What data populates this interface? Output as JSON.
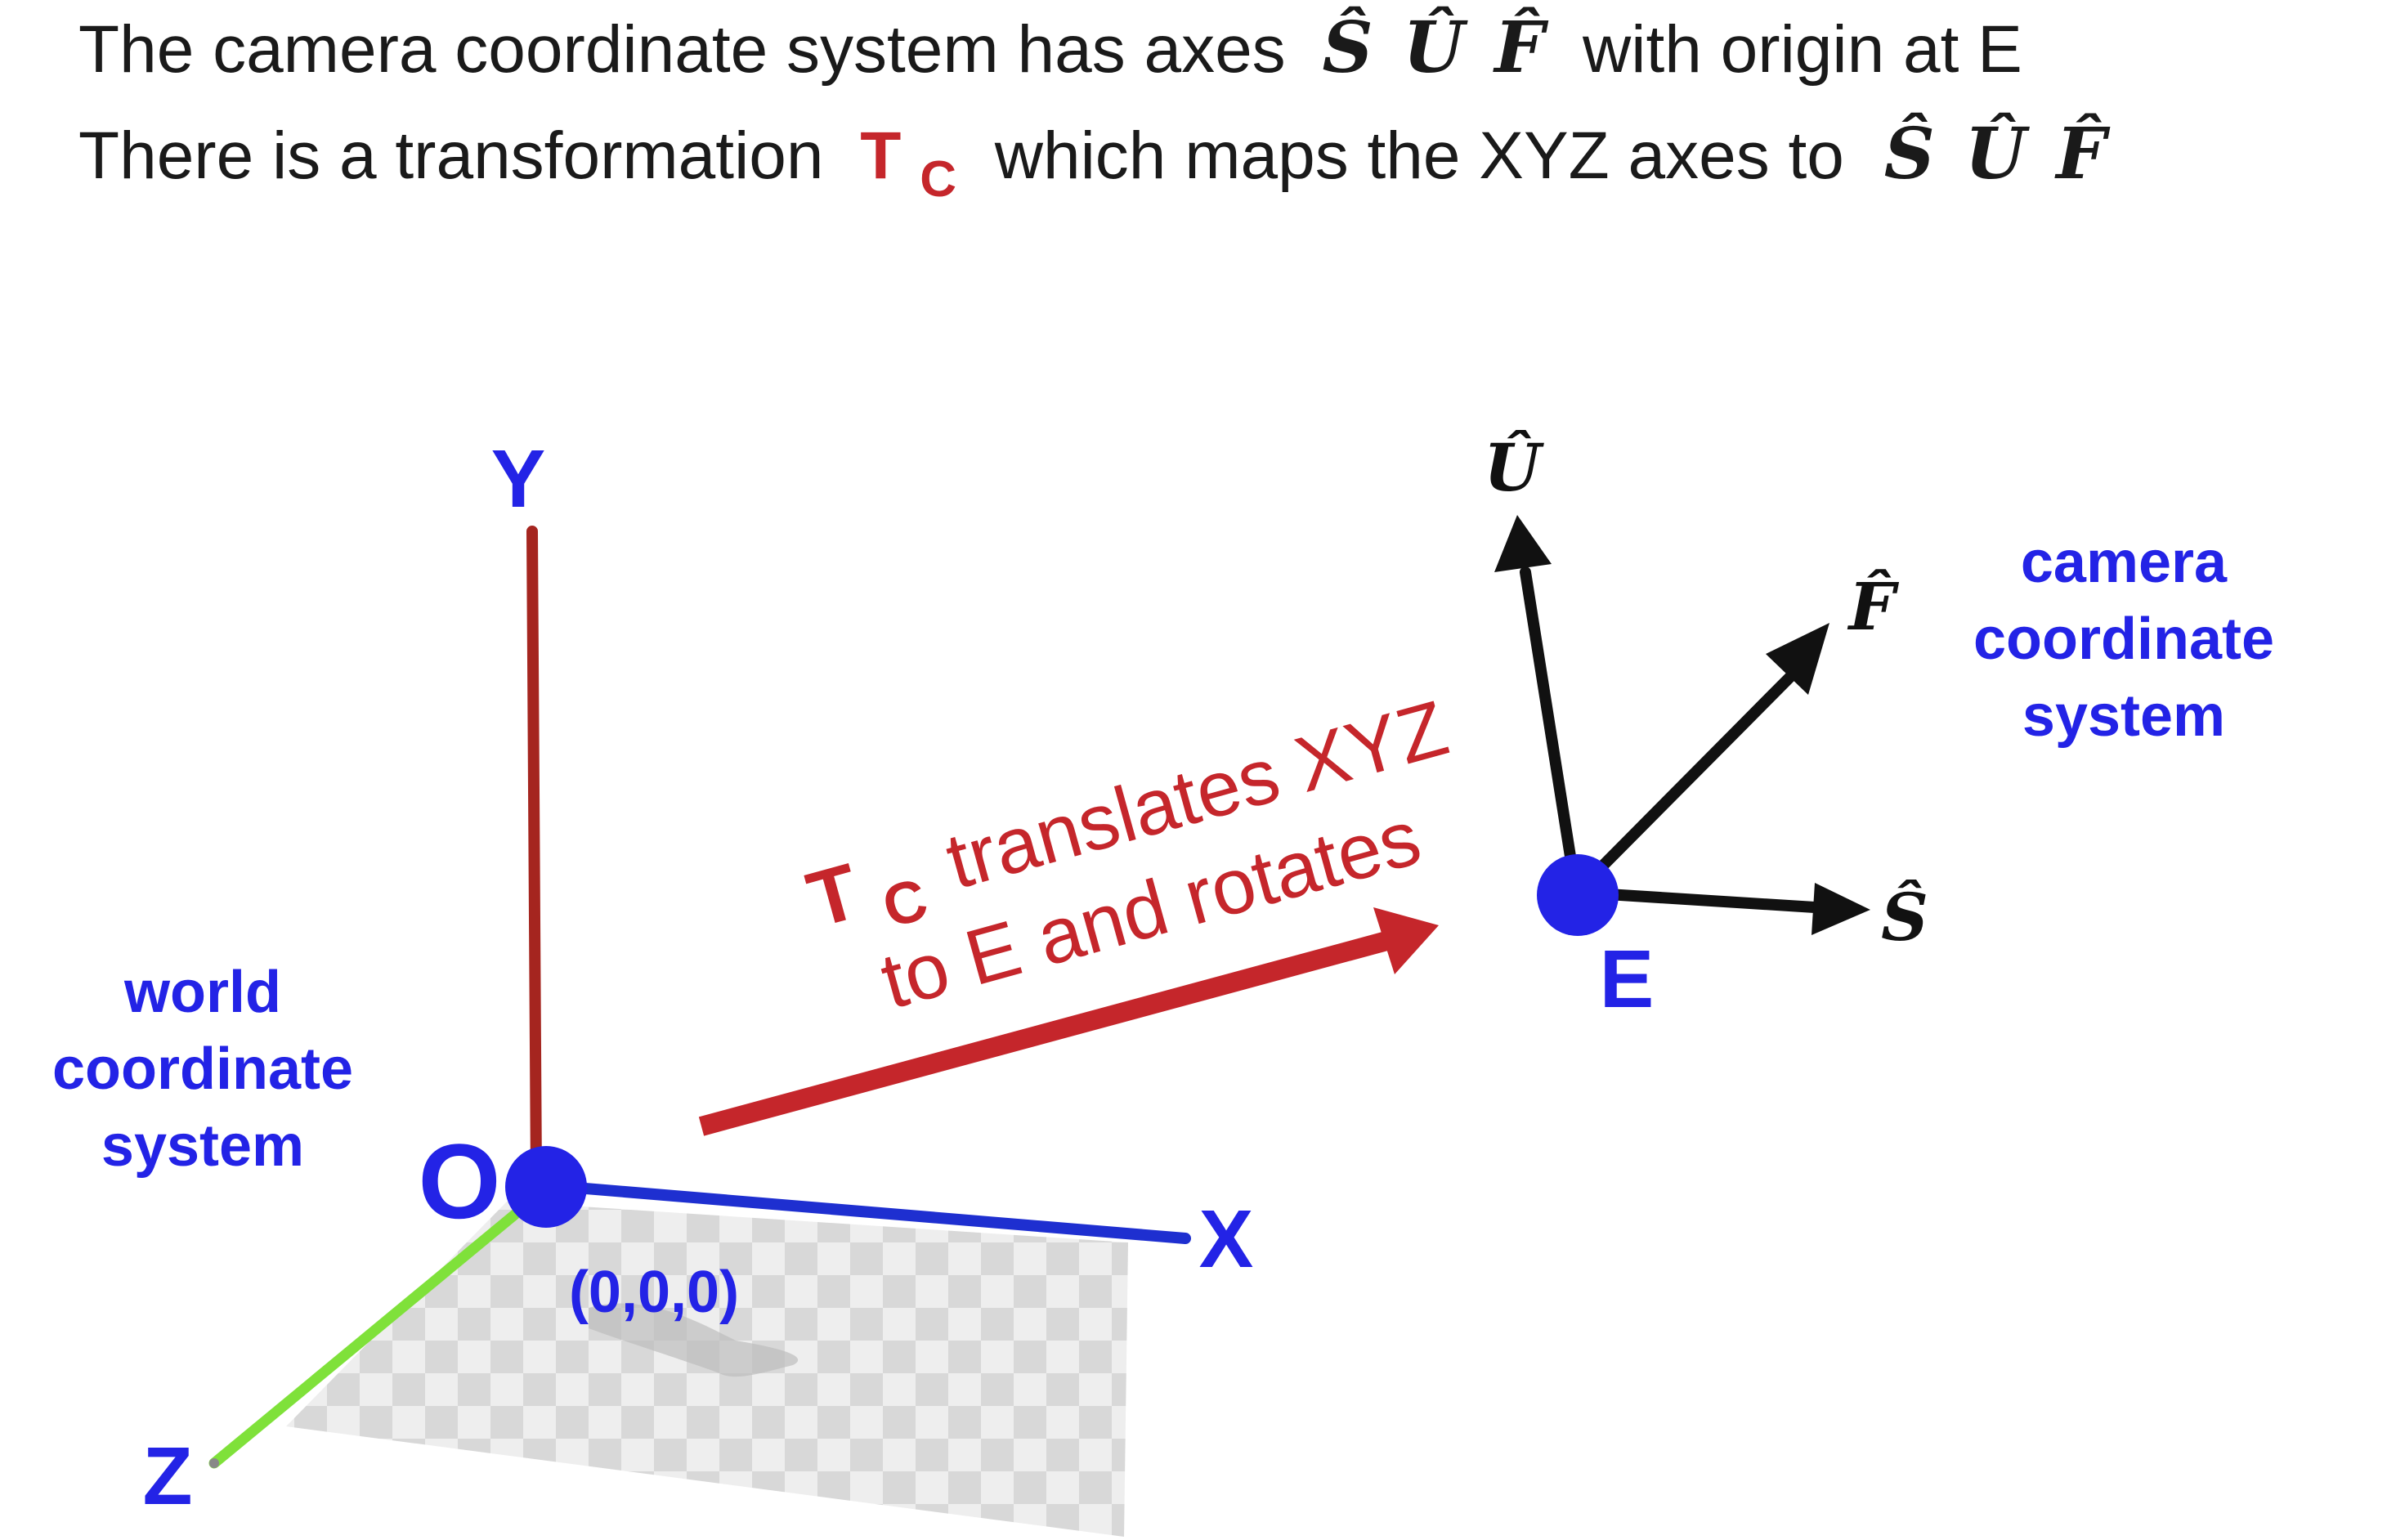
{
  "header": {
    "line1": {
      "before": "The camera coordinate system has axes",
      "axes": [
        "Ŝ",
        "Û",
        "F̂"
      ],
      "after": "with origin at E"
    },
    "line2": {
      "before": "There is a transformation",
      "t_symbol": "T",
      "t_subscript": "C",
      "middle": "which maps the XYZ axes to",
      "axes": [
        "Ŝ",
        "Û",
        "F̂"
      ]
    }
  },
  "world": {
    "label_lines": [
      "world",
      "coordinate",
      "system"
    ],
    "origin_label": "O",
    "origin_coords": "(0,0,0)",
    "axis_y": "Y",
    "axis_x": "X",
    "axis_z": "Z"
  },
  "transform": {
    "t_symbol": "T",
    "t_subscript": "C",
    "line1": "translates XYZ",
    "line2": "to E and rotates"
  },
  "camera": {
    "label_lines": [
      "camera",
      "coordinate",
      "system"
    ],
    "origin_label": "E",
    "axis_u": "Û",
    "axis_f": "F̂",
    "axis_s": "Ŝ"
  },
  "colors": {
    "blue": "#2323e6",
    "red": "#c5262b",
    "y_axis": "#a5251f",
    "x_axis": "#1e2fd0",
    "z_axis": "#7fe13a",
    "black": "#111111",
    "checker_light": "#ececec",
    "checker_dark": "#d4d4d4"
  }
}
